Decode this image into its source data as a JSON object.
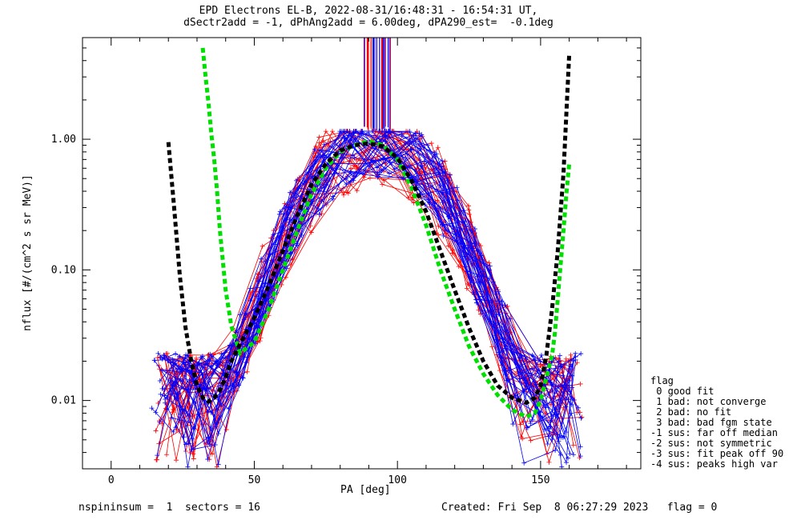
{
  "chart_data": {
    "type": "line",
    "title": "EPD Electrons EL-B, 2022-08-31/16:48:31 - 16:54:31 UT,",
    "subtitle": "dSectr2add = -1, dPhAng2add = 6.00deg, dPA290_est=  -0.1deg",
    "xlabel": "PA [deg]",
    "ylabel": "nflux [#/(cm^2 s sr MeV)]",
    "xlim": [
      -10,
      185
    ],
    "ylim": [
      0.003,
      6.0
    ],
    "yscale": "log",
    "xticks": [
      0,
      50,
      100,
      150
    ],
    "yticks": [
      {
        "value": 1.0,
        "label": "1.00"
      },
      {
        "value": 0.1,
        "label": "0.10"
      },
      {
        "value": 0.01,
        "label": "0.01"
      }
    ],
    "grid": false,
    "series": [
      {
        "color": "#00e000",
        "style": "dashed-thick",
        "x": [
          32,
          33,
          34,
          35,
          36,
          37,
          38,
          40,
          42,
          45,
          50,
          55,
          60,
          65,
          70,
          75,
          80,
          85,
          90,
          95,
          100,
          105,
          110,
          115,
          120,
          125,
          130,
          135,
          140,
          145,
          148,
          150,
          152,
          154,
          155,
          156,
          157,
          158,
          159,
          160
        ],
        "y": [
          5.0,
          3.0,
          1.9,
          1.1,
          0.7,
          0.4,
          0.2,
          0.07,
          0.037,
          0.023,
          0.028,
          0.05,
          0.1,
          0.2,
          0.38,
          0.6,
          0.8,
          0.9,
          0.97,
          0.9,
          0.7,
          0.42,
          0.22,
          0.1,
          0.05,
          0.026,
          0.016,
          0.011,
          0.0085,
          0.0075,
          0.008,
          0.01,
          0.015,
          0.022,
          0.033,
          0.06,
          0.11,
          0.2,
          0.38,
          0.65
        ]
      },
      {
        "color": "#000000",
        "style": "dashed-thick",
        "x": [
          20,
          22,
          24,
          26,
          28,
          30,
          32,
          34,
          36,
          38,
          40,
          42,
          45,
          50,
          55,
          60,
          65,
          70,
          75,
          80,
          85,
          90,
          95,
          100,
          105,
          110,
          115,
          120,
          125,
          130,
          135,
          140,
          145,
          148,
          150,
          152,
          154,
          156,
          158,
          160
        ],
        "y": [
          0.95,
          0.3,
          0.09,
          0.036,
          0.02,
          0.013,
          0.0105,
          0.0098,
          0.0105,
          0.012,
          0.015,
          0.02,
          0.027,
          0.043,
          0.075,
          0.14,
          0.26,
          0.45,
          0.65,
          0.82,
          0.9,
          0.93,
          0.88,
          0.72,
          0.48,
          0.28,
          0.14,
          0.07,
          0.036,
          0.02,
          0.013,
          0.0105,
          0.0096,
          0.0105,
          0.013,
          0.022,
          0.05,
          0.14,
          0.55,
          4.5
        ]
      }
    ]
  },
  "footer": {
    "left": "nspininsum =  1  sectors = 16",
    "right": "Created: Fri Sep  8 06:27:29 2023   flag = 0"
  },
  "flag_legend": {
    "title": "flag",
    "items": [
      " 0 good fit",
      " 1 bad: not converge",
      " 2 bad: no fit",
      " 3 bad: bad fgm state",
      "-1 sus: far off median",
      "-2 sus: not symmetric",
      "-3 sus: fit peak off 90",
      "-4 sus: peaks high var"
    ]
  },
  "colors": {
    "sector_traces_a": "#0000ff",
    "sector_traces_b": "#ff0000",
    "fit_green": "#00e000",
    "fit_black": "#000000"
  }
}
